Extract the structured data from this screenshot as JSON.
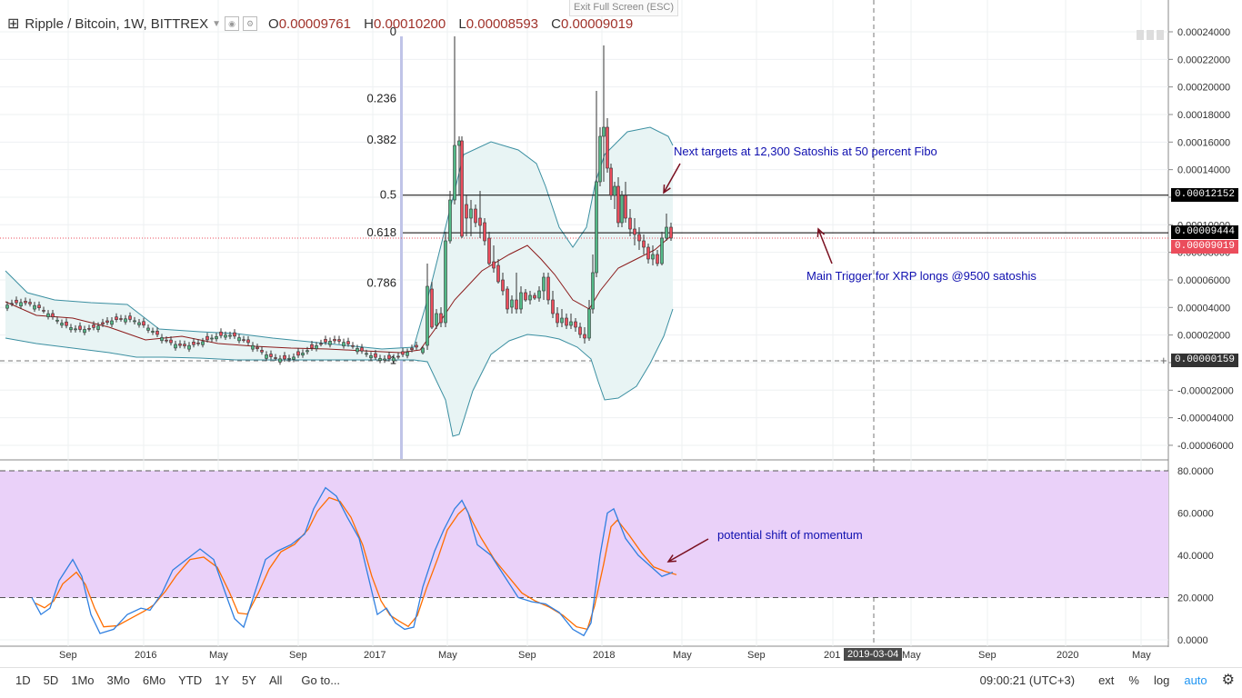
{
  "header": {
    "symbol": "Ripple / Bitcoin, 1W, BITTREX",
    "open_label": "O",
    "open": "0.00009761",
    "high_label": "H",
    "high": "0.00010200",
    "low_label": "L",
    "low": "0.00008593",
    "close_label": "C",
    "close": "0.00009019",
    "exit_fullscreen": "Exit Full Screen (ESC)"
  },
  "price_axis": {
    "ticks": [
      "0.00024000",
      "0.00022000",
      "0.00020000",
      "0.00018000",
      "0.00016000",
      "0.00014000",
      "0.00012000",
      "0.00010000",
      "0.00008000",
      "0.00006000",
      "0.00004000",
      "0.00002000",
      "0.00000000",
      "-0.00002000",
      "-0.00004000",
      "-0.00006000"
    ],
    "tag_fib": "0.00012152",
    "tag_line": "0.00009444",
    "tag_close": "0.00009019",
    "tag_cross": "0.00000159"
  },
  "osc_axis": {
    "ticks": [
      "80.0000",
      "60.0000",
      "40.0000",
      "20.0000",
      "0.0000"
    ]
  },
  "fib_levels": [
    {
      "label": "0",
      "value": 0.00024
    },
    {
      "label": "0.236",
      "value": 0.0001915
    },
    {
      "label": "0.382",
      "value": 0.0001617
    },
    {
      "label": "0.5",
      "value": 0.0001215
    },
    {
      "label": "0.618",
      "value": 9.42e-05
    },
    {
      "label": "0.786",
      "value": 5.76e-05
    },
    {
      "label": "1",
      "value": 1.6e-06
    }
  ],
  "annotations": {
    "next_targets": "Next targets at 12,300 Satoshis at 50 percent Fibo",
    "main_trigger": "Main Trigger for XRP longs @9500 satoshis",
    "momentum": "potential shift of momentum"
  },
  "x_axis": {
    "labels": [
      "Sep",
      "2016",
      "May",
      "Sep",
      "2017",
      "May",
      "Sep",
      "2018",
      "May",
      "Sep",
      "201",
      "May",
      "Sep",
      "2020",
      "May"
    ],
    "cursor_date": "2019-03-04"
  },
  "toolbar": {
    "timeframes": [
      "1D",
      "5D",
      "1Mo",
      "3Mo",
      "6Mo",
      "YTD",
      "1Y",
      "5Y",
      "All"
    ],
    "goto": "Go to...",
    "clock": "09:00:21 (UTC+3)",
    "ext": "ext",
    "percent": "%",
    "log": "log",
    "auto": "auto"
  },
  "colors": {
    "up": "#53b987",
    "down": "#eb4d5c",
    "bb_line": "#3b8fa1",
    "bb_fill": "#e8f4f4",
    "mid": "#8b1a1a",
    "osc_k": "#2f7fe0",
    "osc_d": "#ff6d00",
    "osc_bg": "#ead1f9",
    "annotation": "#1010b0",
    "arrow": "#7a1020"
  },
  "chart_data": {
    "type": "candlestick",
    "title": "Ripple / Bitcoin, 1W, BITTREX",
    "y_range": [
      -6e-05,
      0.00024
    ],
    "closes_approx": [
      [
        "2017-05",
        0.00016
      ],
      [
        "2017-07",
        9e-05
      ],
      [
        "2017-09",
        5.5e-05
      ],
      [
        "2017-11",
        2.5e-05
      ],
      [
        "2018-01",
        0.00014
      ],
      [
        "2018-03",
        8e-05
      ],
      [
        "2018-04",
        9.019e-05
      ]
    ],
    "stoch_range": [
      0,
      80
    ],
    "stoch_levels": [
      20,
      80
    ]
  }
}
